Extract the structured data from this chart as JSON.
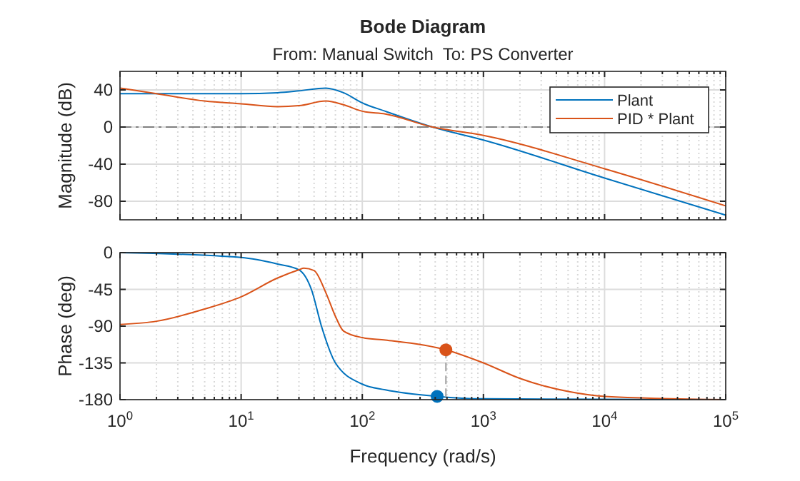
{
  "chart_data": [
    {
      "type": "line",
      "title": "Bode Diagram",
      "subtitle": "From: Manual Switch  To: PS Converter",
      "ylabel": "Magnitude (dB)",
      "xlim": [
        1,
        100000
      ],
      "xticks": [
        1,
        10,
        100,
        1000,
        10000,
        100000
      ],
      "log": "x",
      "ylim": [
        -100,
        60
      ],
      "yticks": [
        -80,
        -40,
        0,
        40
      ],
      "tick_labels": "y",
      "grid": true,
      "legend": "top right",
      "ref_lines": [
        {
          "axis": "y",
          "value": 0,
          "color": "#808080",
          "line_style": "dashed"
        }
      ],
      "series": [
        {
          "name": "Plant",
          "color": "#0072bd",
          "x": [
            1,
            10,
            20,
            30,
            50,
            70,
            100,
            155,
            380,
            1000,
            10000,
            100000
          ],
          "values": [
            36,
            36,
            37,
            39,
            42,
            37,
            26,
            17,
            0,
            -14,
            -55,
            -95
          ]
        },
        {
          "name": "PID * Plant",
          "color": "#d95319",
          "x": [
            1,
            2,
            5,
            10,
            20,
            30,
            50,
            70,
            100,
            155,
            380,
            1000,
            10000,
            100000
          ],
          "values": [
            42,
            36,
            28,
            25,
            22,
            23,
            28,
            24,
            17,
            14,
            0,
            -9,
            -45,
            -85
          ]
        }
      ]
    },
    {
      "type": "line",
      "xlabel": "Frequency (rad/s)",
      "ylabel": "Phase (deg)",
      "xlim": [
        1,
        100000
      ],
      "xticks": [
        {
          "value": 1,
          "label": "10$^{0}$"
        },
        {
          "value": 10,
          "label": "10$^{1}$"
        },
        {
          "value": 100,
          "label": "10$^{2}$"
        },
        {
          "value": 1000,
          "label": "10$^{3}$"
        },
        {
          "value": 10000,
          "label": "10$^{4}$"
        },
        {
          "value": 100000,
          "label": "10$^{5}$"
        }
      ],
      "log": "x",
      "ylim": [
        -180,
        0
      ],
      "yticks": [
        -180,
        -135,
        -90,
        -45,
        0
      ],
      "grid": true,
      "series": [
        {
          "color": "#0072bd",
          "x": [
            1,
            10,
            20,
            30,
            38,
            46,
            60,
            100,
            155,
            415,
            1000,
            100000
          ],
          "values": [
            0,
            -6,
            -14,
            -21,
            -45,
            -90,
            -135,
            -161,
            -168,
            -176,
            -179,
            -180
          ]
        },
        {
          "color": "#d95319",
          "x": [
            1,
            2,
            5,
            10,
            20,
            30,
            33,
            40,
            50,
            60,
            70,
            100,
            155,
            490,
            1000,
            2000,
            5000,
            10000,
            100000
          ],
          "values": [
            -88,
            -84,
            -69,
            -54,
            -31,
            -21,
            -19,
            -22,
            -49,
            -78,
            -96,
            -104,
            -107,
            -119,
            -135,
            -154,
            -170,
            -176,
            -180
          ]
        },
        {
          "type": "line",
          "color": "#a0a0a0",
          "line_style": "dashed",
          "x": [
            490,
            490
          ],
          "values": [
            -119,
            -180
          ]
        },
        {
          "type": "scatter",
          "marker": "circle",
          "color": "#0072bd",
          "x": [
            415
          ],
          "values": [
            -176
          ]
        },
        {
          "type": "scatter",
          "marker": "circle",
          "color": "#d95319",
          "x": [
            490
          ],
          "values": [
            -119
          ]
        }
      ]
    }
  ]
}
